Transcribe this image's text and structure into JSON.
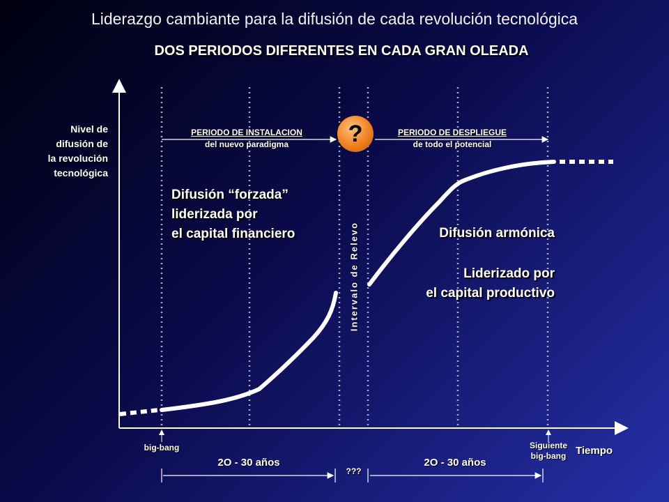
{
  "title": "Liderazgo cambiante para la difusión de cada revolución tecnológica",
  "subtitle": "DOS PERIODOS DIFERENTES EN CADA GRAN OLEADA",
  "y_axis_label": [
    "Nivel de",
    "difusión de",
    "la revolución",
    "tecnológica"
  ],
  "x_axis_label": "Tiempo",
  "installation_period": {
    "line1": "PERIODO DE INSTALACION",
    "line2": "del nuevo paradigma"
  },
  "deployment_period": {
    "line1": "PERIODO DE DESPLIEGUE",
    "line2": "de todo el potencial"
  },
  "question_mark": "?",
  "left_text": [
    "Difusión “forzada”",
    "liderizada por",
    "el capital financiero"
  ],
  "right_text": {
    "line1": "Difusión armónica",
    "line2": "Liderizado por",
    "line3": "el capital productivo"
  },
  "relay_interval": "Intervalo de Relevo",
  "big_bang": "big-bang",
  "next_big_bang": [
    "Siguiente",
    "big-bang"
  ],
  "duration_left": "2O - 30 años",
  "duration_mid": "???",
  "duration_right": "2O - 30 años",
  "colors": {
    "question_circle": "#f08020",
    "curve": "#ffffff",
    "background_dark": "#000010",
    "background_light": "#2530a8"
  }
}
